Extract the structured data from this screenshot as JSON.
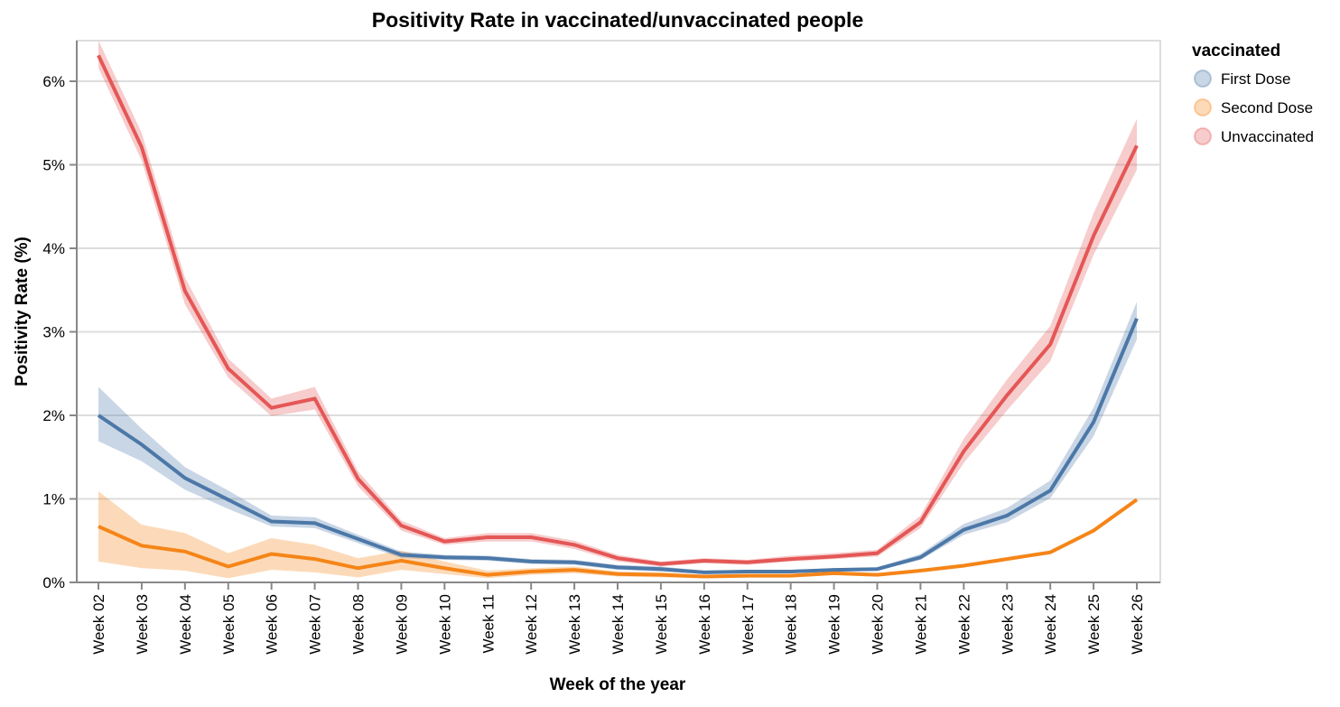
{
  "chart_data": {
    "type": "line",
    "title": "Positivity Rate in vaccinated/unvaccinated people",
    "xlabel": "Week of the year",
    "ylabel": "Positivity Rate (%)",
    "ylim": [
      0,
      6.5
    ],
    "yticks": [
      0,
      1,
      2,
      3,
      4,
      5,
      6
    ],
    "ytick_labels": [
      "0%",
      "1%",
      "2%",
      "3%",
      "4%",
      "5%",
      "6%"
    ],
    "grid": true,
    "legend": {
      "title": "vaccinated",
      "placement": "top-right",
      "entries": [
        "First Dose",
        "Second Dose",
        "Unvaccinated"
      ]
    },
    "categories": [
      "Week 02",
      "Week 03",
      "Week 04",
      "Week 05",
      "Week 06",
      "Week 07",
      "Week 08",
      "Week 09",
      "Week 10",
      "Week 11",
      "Week 12",
      "Week 13",
      "Week 14",
      "Week 15",
      "Week 16",
      "Week 17",
      "Week 18",
      "Week 19",
      "Week 20",
      "Week 21",
      "Week 22",
      "Week 23",
      "Week 24",
      "Week 25",
      "Week 26"
    ],
    "series": [
      {
        "name": "First Dose",
        "color": "#4c78a8",
        "band_color": "#c5d4e6",
        "values": [
          2.0,
          1.65,
          1.25,
          0.99,
          0.73,
          0.71,
          0.52,
          0.33,
          0.3,
          0.29,
          0.25,
          0.24,
          0.18,
          0.16,
          0.12,
          0.13,
          0.13,
          0.15,
          0.16,
          0.3,
          0.63,
          0.8,
          1.1,
          1.92,
          3.16
        ],
        "lower": [
          1.69,
          1.45,
          1.11,
          0.88,
          0.67,
          0.65,
          0.47,
          0.29,
          0.27,
          0.26,
          0.22,
          0.21,
          0.15,
          0.13,
          0.1,
          0.11,
          0.11,
          0.13,
          0.14,
          0.27,
          0.57,
          0.72,
          1.01,
          1.75,
          2.91
        ],
        "upper": [
          2.34,
          1.84,
          1.38,
          1.1,
          0.8,
          0.78,
          0.57,
          0.37,
          0.33,
          0.32,
          0.28,
          0.27,
          0.21,
          0.19,
          0.14,
          0.15,
          0.15,
          0.17,
          0.18,
          0.34,
          0.7,
          0.89,
          1.22,
          2.09,
          3.36
        ]
      },
      {
        "name": "Second Dose",
        "color": "#f58518",
        "band_color": "#fbd3b0",
        "values": [
          0.67,
          0.44,
          0.37,
          0.19,
          0.34,
          0.28,
          0.17,
          0.26,
          0.17,
          0.09,
          0.13,
          0.15,
          0.1,
          0.09,
          0.07,
          0.08,
          0.08,
          0.11,
          0.09,
          0.14,
          0.2,
          0.28,
          0.36,
          0.62,
          0.99
        ],
        "lower": [
          0.25,
          0.17,
          0.14,
          0.05,
          0.15,
          0.12,
          0.06,
          0.15,
          0.1,
          0.05,
          0.09,
          0.11,
          0.07,
          0.06,
          0.05,
          0.06,
          0.06,
          0.09,
          0.07,
          0.12,
          0.18,
          0.26,
          0.34,
          0.6,
          0.97
        ],
        "upper": [
          1.09,
          0.69,
          0.59,
          0.35,
          0.53,
          0.45,
          0.29,
          0.38,
          0.25,
          0.14,
          0.17,
          0.19,
          0.13,
          0.12,
          0.09,
          0.1,
          0.1,
          0.13,
          0.11,
          0.16,
          0.22,
          0.3,
          0.38,
          0.64,
          1.01
        ]
      },
      {
        "name": "Unvaccinated",
        "color": "#e45756",
        "band_color": "#f4c6c6",
        "values": [
          6.31,
          5.21,
          3.49,
          2.56,
          2.09,
          2.2,
          1.24,
          0.68,
          0.49,
          0.54,
          0.54,
          0.45,
          0.29,
          0.22,
          0.26,
          0.24,
          0.28,
          0.31,
          0.35,
          0.72,
          1.57,
          2.24,
          2.85,
          4.15,
          5.23
        ],
        "lower": [
          6.16,
          5.05,
          3.33,
          2.45,
          1.99,
          2.07,
          1.15,
          0.62,
          0.45,
          0.49,
          0.49,
          0.4,
          0.25,
          0.19,
          0.23,
          0.21,
          0.25,
          0.28,
          0.31,
          0.65,
          1.43,
          2.06,
          2.65,
          3.92,
          4.94
        ],
        "upper": [
          6.49,
          5.38,
          3.65,
          2.68,
          2.2,
          2.34,
          1.33,
          0.74,
          0.53,
          0.59,
          0.59,
          0.5,
          0.33,
          0.25,
          0.29,
          0.27,
          0.32,
          0.35,
          0.39,
          0.8,
          1.72,
          2.43,
          3.07,
          4.42,
          5.55
        ]
      }
    ]
  }
}
